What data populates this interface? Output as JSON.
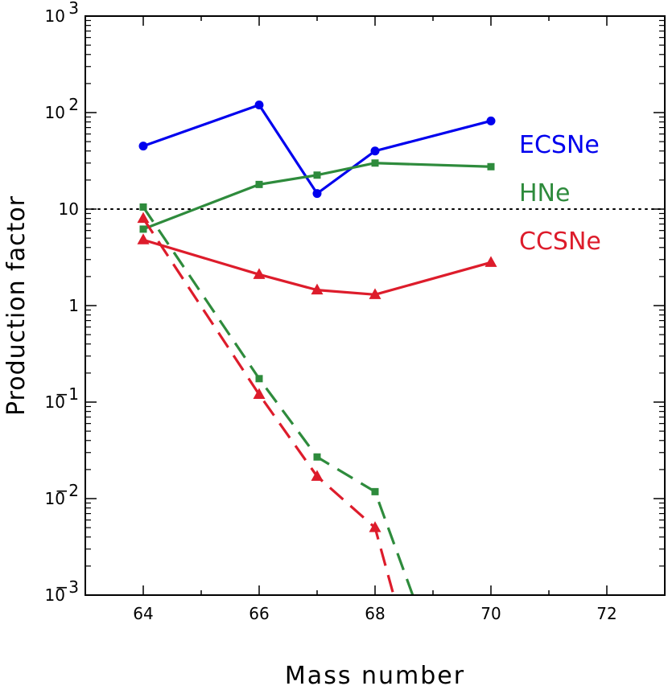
{
  "chart_data": {
    "type": "line",
    "title": "",
    "xlabel": "Mass number",
    "ylabel": "Production factor",
    "xlim": [
      63,
      73
    ],
    "ylim": [
      0.001,
      1000
    ],
    "yscale": "log",
    "xticks": [
      64,
      66,
      68,
      70,
      72
    ],
    "xtick_labels": [
      "64",
      "66",
      "68",
      "70",
      "72"
    ],
    "yticks": [
      0.001,
      0.01,
      0.1,
      1,
      10,
      100,
      1000
    ],
    "ytick_labels": [
      {
        "base": "10",
        "exp": "−3"
      },
      {
        "base": "10",
        "exp": "−2"
      },
      {
        "base": "10",
        "exp": "−1"
      },
      {
        "base": "1",
        "exp": ""
      },
      {
        "base": "10",
        "exp": ""
      },
      {
        "base": "10",
        "exp": "2"
      },
      {
        "base": "10",
        "exp": "3"
      }
    ],
    "reference_line": {
      "y": 10,
      "style": "dotted",
      "color": "#000000"
    },
    "legend_placement": "right",
    "series": [
      {
        "name": "ECSNe",
        "color": "#0000ee",
        "style": "solid",
        "marker": "circle",
        "x": [
          64,
          66,
          67,
          68,
          70
        ],
        "y": [
          45,
          120,
          14.5,
          40,
          82
        ]
      },
      {
        "name": "HNe",
        "color": "#2e8b3c",
        "style": "solid",
        "marker": "square",
        "x": [
          64,
          66,
          67,
          68,
          70
        ],
        "y": [
          6.2,
          18,
          22.5,
          30,
          27.5
        ]
      },
      {
        "name": "CCSNe",
        "color": "#dd1c2b",
        "style": "solid",
        "marker": "triangle",
        "x": [
          64,
          66,
          67,
          68,
          70
        ],
        "y": [
          4.8,
          2.1,
          1.45,
          1.3,
          2.8
        ]
      },
      {
        "name": "",
        "color": "#2e8b3c",
        "style": "dashed",
        "marker": "square",
        "x": [
          64,
          66,
          67,
          68,
          68.65
        ],
        "y": [
          10.5,
          0.175,
          0.027,
          0.0118,
          0.001
        ],
        "marker_mask": [
          true,
          true,
          true,
          true,
          false
        ]
      },
      {
        "name": "",
        "color": "#dd1c2b",
        "style": "dashed",
        "marker": "triangle",
        "x": [
          64,
          66,
          67,
          68,
          68.32
        ],
        "y": [
          8.0,
          0.12,
          0.017,
          0.005,
          0.001
        ],
        "marker_mask": [
          true,
          true,
          true,
          true,
          false
        ]
      }
    ]
  }
}
